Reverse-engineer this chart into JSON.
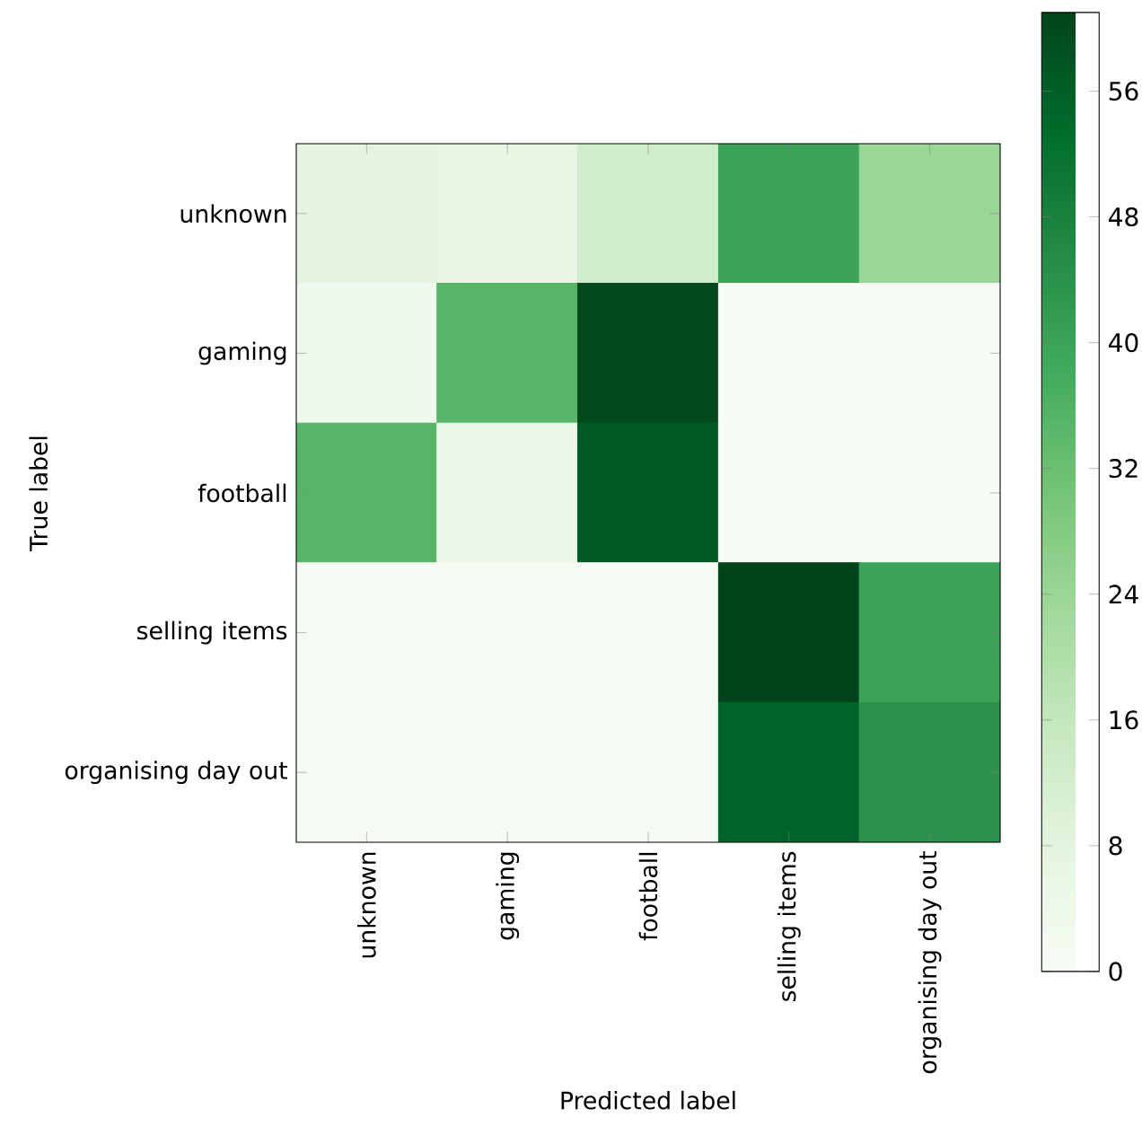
{
  "chart_data": {
    "type": "heatmap",
    "xlabel": "Predicted label",
    "ylabel": "True label",
    "categories": [
      "unknown",
      "gaming",
      "football",
      "selling items",
      "organising day out"
    ],
    "y_categories": [
      "unknown",
      "gaming",
      "football",
      "selling items",
      "organising day out"
    ],
    "cells": [
      [
        8,
        7,
        13,
        40,
        24
      ],
      [
        3,
        35,
        60,
        0,
        0
      ],
      [
        35,
        5,
        57,
        0,
        0
      ],
      [
        1,
        1,
        1,
        61,
        40
      ],
      [
        1,
        1,
        1,
        55,
        44
      ]
    ],
    "clim": [
      0,
      61
    ],
    "cticks": [
      0,
      8,
      16,
      24,
      32,
      40,
      48,
      56
    ]
  }
}
